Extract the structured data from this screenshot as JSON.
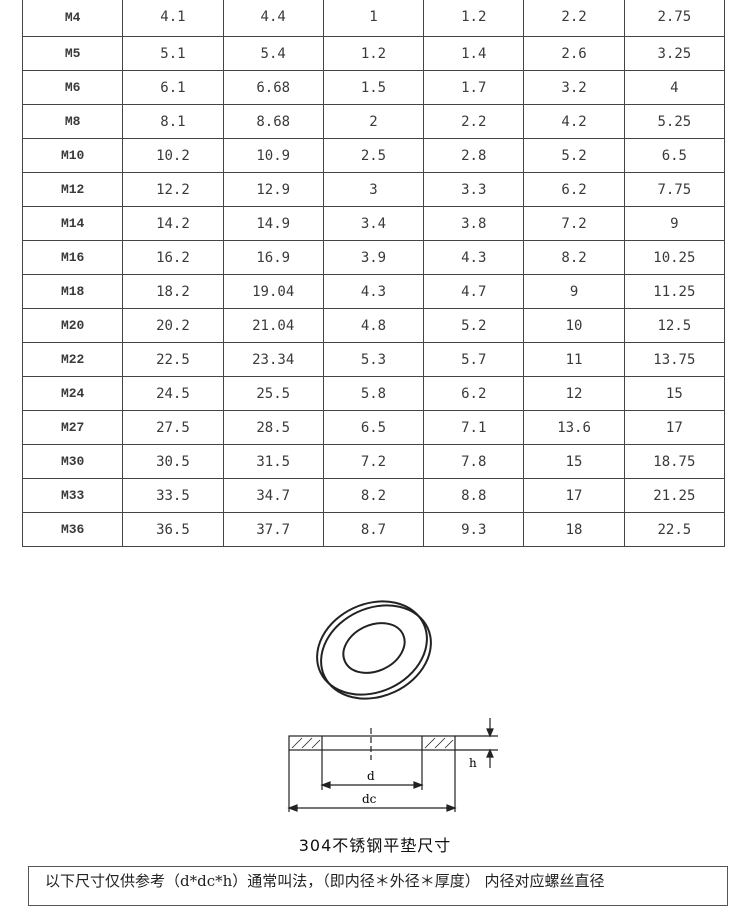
{
  "table": {
    "rows": [
      [
        "M4",
        "4.1",
        "4.4",
        "1",
        "1.2",
        "2.2",
        "2.75"
      ],
      [
        "M5",
        "5.1",
        "5.4",
        "1.2",
        "1.4",
        "2.6",
        "3.25"
      ],
      [
        "M6",
        "6.1",
        "6.68",
        "1.5",
        "1.7",
        "3.2",
        "4"
      ],
      [
        "M8",
        "8.1",
        "8.68",
        "2",
        "2.2",
        "4.2",
        "5.25"
      ],
      [
        "M10",
        "10.2",
        "10.9",
        "2.5",
        "2.8",
        "5.2",
        "6.5"
      ],
      [
        "M12",
        "12.2",
        "12.9",
        "3",
        "3.3",
        "6.2",
        "7.75"
      ],
      [
        "M14",
        "14.2",
        "14.9",
        "3.4",
        "3.8",
        "7.2",
        "9"
      ],
      [
        "M16",
        "16.2",
        "16.9",
        "3.9",
        "4.3",
        "8.2",
        "10.25"
      ],
      [
        "M18",
        "18.2",
        "19.04",
        "4.3",
        "4.7",
        "9",
        "11.25"
      ],
      [
        "M20",
        "20.2",
        "21.04",
        "4.8",
        "5.2",
        "10",
        "12.5"
      ],
      [
        "M22",
        "22.5",
        "23.34",
        "5.3",
        "5.7",
        "11",
        "13.75"
      ],
      [
        "M24",
        "24.5",
        "25.5",
        "5.8",
        "6.2",
        "12",
        "15"
      ],
      [
        "M27",
        "27.5",
        "28.5",
        "6.5",
        "7.1",
        "13.6",
        "17"
      ],
      [
        "M30",
        "30.5",
        "31.5",
        "7.2",
        "7.8",
        "15",
        "18.75"
      ],
      [
        "M33",
        "33.5",
        "34.7",
        "8.2",
        "8.8",
        "17",
        "21.25"
      ],
      [
        "M36",
        "36.5",
        "37.7",
        "8.7",
        "9.3",
        "18",
        "22.5"
      ]
    ]
  },
  "diagram": {
    "label_d": "d",
    "label_dc": "dc",
    "label_h": "h"
  },
  "caption": "304不锈钢平垫尺寸",
  "note": "以下尺寸仅供参考（d*dc*h）通常叫法，（即内径＊外径＊厚度） 内径对应螺丝直径"
}
